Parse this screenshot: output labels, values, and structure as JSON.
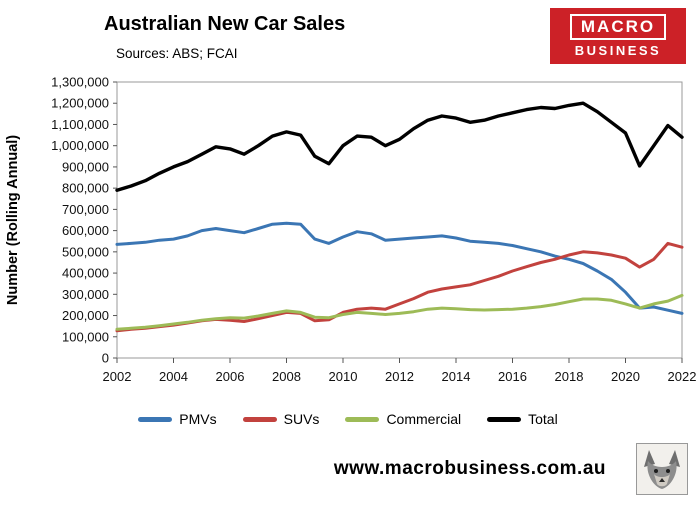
{
  "header": {
    "title": "Australian New Car Sales",
    "sources": "Sources: ABS; FCAI"
  },
  "logo": {
    "line1": "MACRO",
    "line2": "BUSINESS",
    "color": "#cc2127"
  },
  "footer": {
    "url": "www.macrobusiness.com.au"
  },
  "chart_data": {
    "type": "line",
    "title": "Australian New Car Sales",
    "xlabel": "",
    "ylabel": "Number (Rolling Annual)",
    "xlim": [
      2002,
      2022
    ],
    "ylim": [
      0,
      1300000
    ],
    "xtick_step": 2,
    "ytick_step": 100000,
    "grid": false,
    "legend_position": "bottom",
    "x": [
      2002,
      2002.5,
      2003,
      2003.5,
      2004,
      2004.5,
      2005,
      2005.5,
      2006,
      2006.5,
      2007,
      2007.5,
      2008,
      2008.5,
      2009,
      2009.5,
      2010,
      2010.5,
      2011,
      2011.5,
      2012,
      2012.5,
      2013,
      2013.5,
      2014,
      2014.5,
      2015,
      2015.5,
      2016,
      2016.5,
      2017,
      2017.5,
      2018,
      2018.5,
      2019,
      2019.5,
      2020,
      2020.5,
      2021,
      2021.5,
      2022
    ],
    "series": [
      {
        "name": "PMVs",
        "color": "#3b76b4",
        "width": 3,
        "values": [
          535000,
          540000,
          545000,
          555000,
          560000,
          575000,
          600000,
          610000,
          600000,
          590000,
          610000,
          630000,
          635000,
          630000,
          560000,
          540000,
          570000,
          595000,
          585000,
          555000,
          560000,
          565000,
          570000,
          575000,
          565000,
          550000,
          545000,
          540000,
          530000,
          515000,
          500000,
          480000,
          465000,
          445000,
          410000,
          370000,
          310000,
          235000,
          240000,
          225000,
          210000
        ]
      },
      {
        "name": "SUVs",
        "color": "#c2423e",
        "width": 3,
        "values": [
          128000,
          135000,
          140000,
          148000,
          155000,
          165000,
          175000,
          182000,
          178000,
          172000,
          185000,
          200000,
          215000,
          210000,
          175000,
          180000,
          215000,
          230000,
          235000,
          230000,
          255000,
          280000,
          310000,
          325000,
          335000,
          345000,
          365000,
          385000,
          410000,
          430000,
          450000,
          465000,
          485000,
          500000,
          495000,
          485000,
          470000,
          428000,
          465000,
          540000,
          522000
        ]
      },
      {
        "name": "Commercial",
        "color": "#9dbb57",
        "width": 3,
        "values": [
          135000,
          140000,
          145000,
          152000,
          160000,
          168000,
          178000,
          185000,
          190000,
          188000,
          198000,
          210000,
          222000,
          215000,
          192000,
          190000,
          205000,
          215000,
          210000,
          205000,
          210000,
          218000,
          230000,
          235000,
          232000,
          228000,
          226000,
          228000,
          230000,
          235000,
          242000,
          252000,
          265000,
          278000,
          278000,
          272000,
          255000,
          235000,
          255000,
          268000,
          295000
        ]
      },
      {
        "name": "Total",
        "color": "#000000",
        "width": 3.4,
        "values": [
          790000,
          810000,
          835000,
          870000,
          900000,
          925000,
          960000,
          995000,
          985000,
          960000,
          1000000,
          1045000,
          1065000,
          1050000,
          950000,
          915000,
          1000000,
          1045000,
          1040000,
          1000000,
          1030000,
          1080000,
          1120000,
          1140000,
          1130000,
          1110000,
          1120000,
          1140000,
          1155000,
          1170000,
          1180000,
          1175000,
          1190000,
          1200000,
          1160000,
          1110000,
          1060000,
          905000,
          1000000,
          1095000,
          1040000
        ]
      }
    ]
  }
}
